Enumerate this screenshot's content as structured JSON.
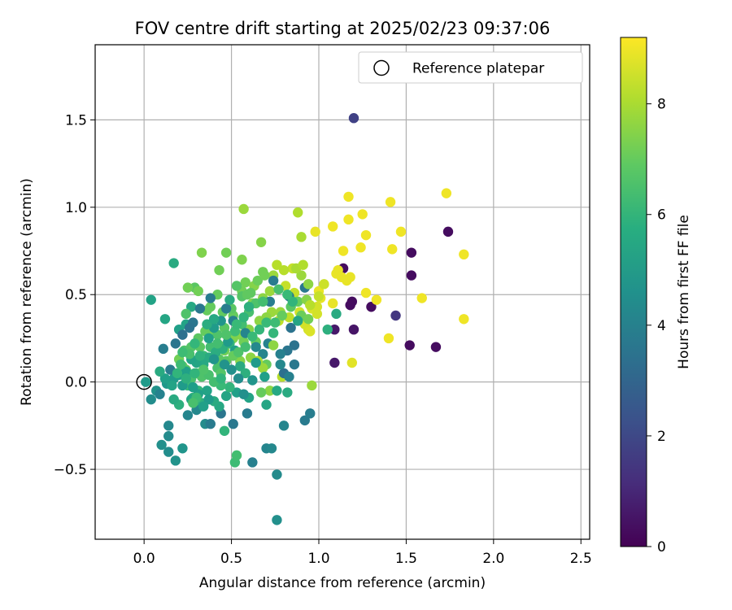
{
  "chart_data": {
    "type": "scatter",
    "title": "FOV centre drift starting at 2025/02/23 09:37:06",
    "xlabel": "Angular distance from reference (arcmin)",
    "ylabel": "Rotation from reference (arcmin)",
    "xlim": [
      -0.28,
      2.55
    ],
    "ylim": [
      -0.9,
      1.93
    ],
    "x_ticks": [
      0.0,
      0.5,
      1.0,
      1.5,
      2.0,
      2.5
    ],
    "x_tick_labels": [
      "0.0",
      "0.5",
      "1.0",
      "1.5",
      "2.0",
      "2.5"
    ],
    "y_ticks": [
      -0.5,
      0.0,
      0.5,
      1.0,
      1.5
    ],
    "y_tick_labels": [
      "−0.5",
      "0.0",
      "0.5",
      "1.0",
      "1.5"
    ],
    "grid": true,
    "legend": {
      "placement": "top-right",
      "entries": [
        {
          "label": "Reference platepar",
          "marker": "open-circle"
        }
      ]
    },
    "reference_point": {
      "x": 0.0,
      "y": 0.0
    },
    "colorbar": {
      "label": "Hours from first FF file",
      "range": [
        0,
        9.2
      ],
      "ticks": [
        0,
        2,
        4,
        6,
        8
      ],
      "tick_labels": [
        "0",
        "2",
        "4",
        "6",
        "8"
      ],
      "colormap": "viridis"
    },
    "points": [
      [
        1.2,
        1.51,
        1.8
      ],
      [
        1.74,
        0.86,
        0.3
      ],
      [
        1.53,
        0.74,
        0.3
      ],
      [
        1.53,
        0.61,
        0.3
      ],
      [
        1.14,
        0.65,
        0.3
      ],
      [
        1.19,
        0.46,
        0.3
      ],
      [
        1.18,
        0.44,
        0.3
      ],
      [
        1.3,
        0.43,
        0.3
      ],
      [
        1.44,
        0.38,
        1.5
      ],
      [
        1.2,
        0.3,
        0.5
      ],
      [
        1.09,
        0.3,
        0.6
      ],
      [
        1.52,
        0.21,
        0.3
      ],
      [
        1.67,
        0.2,
        0.3
      ],
      [
        1.09,
        0.11,
        0.6
      ],
      [
        1.73,
        1.08,
        9.0
      ],
      [
        1.41,
        1.03,
        9.0
      ],
      [
        1.17,
        1.06,
        9.0
      ],
      [
        1.25,
        0.96,
        9.0
      ],
      [
        1.17,
        0.93,
        9.0
      ],
      [
        1.08,
        0.89,
        9.0
      ],
      [
        0.98,
        0.86,
        8.9
      ],
      [
        1.47,
        0.86,
        9.0
      ],
      [
        1.27,
        0.84,
        9.0
      ],
      [
        1.42,
        0.76,
        9.0
      ],
      [
        1.24,
        0.77,
        9.0
      ],
      [
        1.14,
        0.75,
        9.0
      ],
      [
        1.83,
        0.73,
        9.0
      ],
      [
        1.11,
        0.64,
        8.9
      ],
      [
        1.1,
        0.62,
        8.9
      ],
      [
        1.13,
        0.6,
        8.9
      ],
      [
        1.16,
        0.58,
        8.9
      ],
      [
        1.18,
        0.6,
        8.9
      ],
      [
        1.27,
        0.51,
        9.0
      ],
      [
        1.33,
        0.47,
        9.0
      ],
      [
        1.59,
        0.48,
        9.0
      ],
      [
        1.4,
        0.25,
        9.0
      ],
      [
        1.83,
        0.36,
        9.0
      ],
      [
        1.19,
        0.11,
        8.8
      ],
      [
        1.08,
        0.45,
        8.9
      ],
      [
        1.0,
        0.52,
        8.9
      ],
      [
        1.01,
        0.48,
        8.9
      ],
      [
        0.96,
        0.42,
        8.7
      ],
      [
        0.99,
        0.43,
        8.6
      ],
      [
        0.94,
        0.3,
        8.6
      ],
      [
        0.92,
        0.33,
        8.6
      ],
      [
        0.89,
        0.4,
        8.6
      ],
      [
        0.83,
        0.37,
        8.3
      ],
      [
        0.77,
        0.35,
        8.3
      ],
      [
        0.86,
        0.51,
        8.4
      ],
      [
        0.81,
        0.55,
        8.4
      ],
      [
        0.85,
        0.65,
        8.4
      ],
      [
        0.8,
        0.64,
        8.2
      ],
      [
        0.76,
        0.67,
        8.2
      ],
      [
        0.88,
        0.97,
        8.1
      ],
      [
        0.9,
        0.83,
        8.0
      ],
      [
        0.57,
        0.99,
        7.8
      ],
      [
        0.67,
        0.8,
        7.5
      ],
      [
        0.56,
        0.7,
        7.4
      ],
      [
        0.33,
        0.74,
        7.4
      ],
      [
        0.47,
        0.74,
        7.2
      ],
      [
        0.43,
        0.64,
        7.2
      ],
      [
        0.68,
        0.63,
        7.2
      ],
      [
        0.74,
        0.61,
        7.8
      ],
      [
        0.72,
        0.52,
        7.8
      ],
      [
        0.68,
        0.48,
        7.6
      ],
      [
        0.62,
        0.45,
        7.4
      ],
      [
        0.73,
        0.4,
        7.8
      ],
      [
        0.78,
        0.4,
        7.8
      ],
      [
        0.7,
        0.37,
        7.6
      ],
      [
        0.66,
        0.35,
        7.6
      ],
      [
        0.6,
        0.3,
        7.5
      ],
      [
        0.55,
        0.27,
        7.5
      ],
      [
        0.51,
        0.25,
        7.4
      ],
      [
        0.57,
        0.23,
        7.2
      ],
      [
        0.64,
        0.23,
        7.0
      ],
      [
        0.61,
        0.14,
        7.6
      ],
      [
        0.7,
        0.1,
        7.0
      ],
      [
        0.79,
        0.03,
        8.2
      ],
      [
        0.96,
        -0.02,
        7.8
      ],
      [
        0.72,
        -0.05,
        7.6
      ],
      [
        0.67,
        -0.06,
        7.0
      ],
      [
        0.55,
        0.12,
        7.5
      ],
      [
        0.46,
        0.18,
        7.2
      ],
      [
        0.43,
        0.21,
        7.0
      ],
      [
        0.43,
        0.13,
        6.8
      ],
      [
        0.42,
        0.08,
        6.5
      ],
      [
        0.39,
        0.29,
        7.2
      ],
      [
        0.35,
        0.29,
        7.0
      ],
      [
        0.31,
        0.25,
        6.8
      ],
      [
        0.27,
        0.2,
        6.7
      ],
      [
        0.23,
        0.18,
        6.6
      ],
      [
        0.2,
        0.13,
        7.2
      ],
      [
        0.22,
        0.09,
        7.0
      ],
      [
        0.24,
        0.07,
        6.8
      ],
      [
        0.3,
        0.05,
        6.7
      ],
      [
        0.33,
        0.03,
        6.6
      ],
      [
        0.27,
        0.02,
        6.5
      ],
      [
        0.25,
        -0.02,
        6.2
      ],
      [
        0.31,
        -0.05,
        6.0
      ],
      [
        0.28,
        -0.09,
        5.9
      ],
      [
        0.33,
        -0.12,
        5.8
      ],
      [
        0.34,
        0.15,
        6.2
      ],
      [
        0.38,
        0.2,
        6.4
      ],
      [
        0.42,
        0.27,
        6.6
      ],
      [
        0.46,
        0.31,
        6.8
      ],
      [
        0.51,
        0.38,
        7.0
      ],
      [
        0.56,
        0.52,
        7.2
      ],
      [
        0.58,
        0.57,
        7.2
      ],
      [
        0.63,
        0.55,
        7.5
      ],
      [
        0.64,
        0.45,
        6.6
      ],
      [
        0.6,
        0.4,
        6.5
      ],
      [
        0.56,
        0.33,
        6.4
      ],
      [
        0.52,
        0.29,
        6.3
      ],
      [
        0.49,
        0.22,
        6.0
      ],
      [
        0.45,
        0.19,
        5.8
      ],
      [
        0.41,
        0.17,
        5.7
      ],
      [
        0.37,
        0.14,
        5.6
      ],
      [
        0.34,
        0.1,
        5.5
      ],
      [
        0.3,
        0.11,
        5.4
      ],
      [
        0.27,
        0.13,
        5.3
      ],
      [
        0.24,
        0.06,
        5.2
      ],
      [
        0.2,
        0.04,
        5.1
      ],
      [
        0.17,
        0.02,
        5.0
      ],
      [
        0.13,
        -0.01,
        4.9
      ],
      [
        0.07,
        -0.05,
        4.7
      ],
      [
        0.04,
        -0.1,
        4.5
      ],
      [
        0.01,
        0.0,
        5.0
      ],
      [
        0.04,
        0.47,
        5.3
      ],
      [
        0.17,
        0.68,
        5.6
      ],
      [
        0.12,
        0.36,
        5.4
      ],
      [
        0.2,
        0.3,
        5.2
      ],
      [
        0.24,
        0.33,
        5.3
      ],
      [
        0.27,
        0.43,
        5.5
      ],
      [
        0.29,
        0.54,
        6.8
      ],
      [
        0.25,
        0.54,
        7.2
      ],
      [
        0.31,
        0.52,
        7.2
      ],
      [
        0.36,
        0.41,
        7.0
      ],
      [
        0.38,
        0.43,
        7.0
      ],
      [
        0.42,
        0.5,
        7.0
      ],
      [
        0.45,
        0.4,
        6.9
      ],
      [
        0.5,
        0.42,
        6.8
      ],
      [
        0.56,
        0.49,
        6.7
      ],
      [
        0.61,
        0.51,
        6.9
      ],
      [
        0.65,
        0.58,
        7.1
      ],
      [
        0.69,
        0.61,
        7.2
      ],
      [
        0.72,
        0.46,
        3.9
      ],
      [
        0.74,
        0.58,
        3.8
      ],
      [
        0.83,
        0.49,
        3.6
      ],
      [
        0.92,
        0.54,
        3.7
      ],
      [
        0.84,
        0.31,
        3.5
      ],
      [
        0.86,
        0.21,
        3.5
      ],
      [
        0.82,
        0.18,
        3.6
      ],
      [
        0.86,
        0.1,
        3.7
      ],
      [
        0.8,
        0.05,
        3.4
      ],
      [
        0.78,
        0.16,
        4.0
      ],
      [
        0.71,
        0.22,
        4.1
      ],
      [
        0.68,
        0.16,
        4.2
      ],
      [
        0.64,
        0.2,
        4.3
      ],
      [
        0.58,
        0.28,
        4.2
      ],
      [
        0.51,
        0.35,
        4.0
      ],
      [
        0.47,
        0.42,
        3.9
      ],
      [
        0.38,
        0.48,
        3.8
      ],
      [
        0.32,
        0.42,
        3.7
      ],
      [
        0.28,
        0.34,
        3.6
      ],
      [
        0.26,
        0.31,
        3.5
      ],
      [
        0.22,
        0.27,
        3.4
      ],
      [
        0.18,
        0.22,
        3.6
      ],
      [
        0.15,
        0.07,
        3.8
      ],
      [
        0.11,
        0.19,
        3.9
      ],
      [
        0.09,
        -0.07,
        4.1
      ],
      [
        0.14,
        -0.25,
        4.3
      ],
      [
        0.14,
        -0.31,
        4.4
      ],
      [
        0.14,
        -0.4,
        4.5
      ],
      [
        0.1,
        -0.36,
        4.6
      ],
      [
        0.18,
        -0.45,
        4.7
      ],
      [
        0.22,
        -0.38,
        4.8
      ],
      [
        0.25,
        -0.19,
        4.2
      ],
      [
        0.3,
        -0.16,
        4.3
      ],
      [
        0.35,
        -0.24,
        4.4
      ],
      [
        0.38,
        -0.24,
        3.8
      ],
      [
        0.44,
        -0.18,
        3.6
      ],
      [
        0.51,
        -0.24,
        3.7
      ],
      [
        0.59,
        -0.18,
        3.8
      ],
      [
        0.62,
        -0.46,
        4.0
      ],
      [
        0.7,
        -0.38,
        4.2
      ],
      [
        0.73,
        -0.38,
        4.3
      ],
      [
        0.76,
        -0.53,
        4.4
      ],
      [
        0.76,
        -0.79,
        4.6
      ],
      [
        0.8,
        -0.25,
        4.2
      ],
      [
        0.92,
        -0.22,
        3.8
      ],
      [
        0.95,
        -0.18,
        3.9
      ],
      [
        0.82,
        -0.06,
        5.6
      ],
      [
        0.76,
        -0.05,
        5.5
      ],
      [
        0.7,
        -0.13,
        5.4
      ],
      [
        0.6,
        -0.09,
        5.3
      ],
      [
        0.53,
        -0.06,
        5.2
      ],
      [
        0.47,
        -0.08,
        5.4
      ],
      [
        0.43,
        -0.14,
        5.5
      ],
      [
        0.4,
        -0.11,
        5.6
      ],
      [
        0.36,
        -0.05,
        5.3
      ],
      [
        0.31,
        -0.07,
        5.2
      ],
      [
        0.28,
        -0.03,
        5.1
      ],
      [
        0.22,
        -0.02,
        5.0
      ],
      [
        0.19,
        0.05,
        6.0
      ],
      [
        0.21,
        0.1,
        6.3
      ],
      [
        0.26,
        0.16,
        6.5
      ],
      [
        0.32,
        0.2,
        6.8
      ],
      [
        0.37,
        0.25,
        5.2
      ],
      [
        0.4,
        0.31,
        5.0
      ],
      [
        0.44,
        0.35,
        4.8
      ],
      [
        0.48,
        0.23,
        5.0
      ],
      [
        0.52,
        0.18,
        5.2
      ],
      [
        0.55,
        0.09,
        5.6
      ],
      [
        0.58,
        0.05,
        5.8
      ],
      [
        0.49,
        -0.03,
        6.0
      ],
      [
        0.44,
        -0.02,
        6.2
      ],
      [
        0.4,
        0.0,
        6.4
      ],
      [
        0.37,
        0.04,
        6.5
      ],
      [
        0.34,
        0.07,
        6.6
      ],
      [
        0.29,
        0.05,
        6.0
      ],
      [
        0.24,
        0.02,
        5.8
      ],
      [
        0.46,
        -0.28,
        6.0
      ],
      [
        0.52,
        -0.46,
        6.3
      ],
      [
        0.53,
        -0.42,
        6.4
      ],
      [
        0.44,
        0.05,
        6.7
      ],
      [
        0.47,
        0.12,
        6.8
      ],
      [
        0.51,
        0.15,
        7.0
      ],
      [
        0.54,
        0.17,
        6.6
      ],
      [
        0.58,
        0.2,
        6.4
      ],
      [
        0.62,
        0.26,
        6.2
      ],
      [
        0.66,
        0.3,
        6.1
      ],
      [
        0.7,
        0.34,
        6.2
      ],
      [
        0.74,
        0.28,
        6.1
      ],
      [
        0.75,
        0.34,
        6.3
      ],
      [
        0.68,
        0.46,
        6.4
      ],
      [
        0.77,
        0.53,
        6.5
      ],
      [
        0.84,
        0.43,
        6.8
      ],
      [
        0.88,
        0.46,
        7.0
      ],
      [
        0.9,
        0.38,
        7.1
      ],
      [
        0.94,
        0.36,
        7.2
      ],
      [
        0.93,
        0.47,
        7.5
      ],
      [
        0.94,
        0.56,
        7.6
      ],
      [
        0.9,
        0.61,
        7.8
      ],
      [
        0.87,
        0.65,
        8.0
      ],
      [
        0.91,
        0.67,
        8.1
      ],
      [
        0.95,
        0.44,
        8.2
      ],
      [
        1.0,
        0.49,
        8.4
      ],
      [
        1.03,
        0.56,
        8.5
      ],
      [
        0.99,
        0.39,
        8.6
      ],
      [
        0.95,
        0.29,
        8.7
      ],
      [
        1.05,
        0.3,
        5.8
      ],
      [
        1.1,
        0.39,
        5.6
      ],
      [
        0.88,
        0.35,
        5.4
      ],
      [
        0.85,
        0.46,
        6.0
      ],
      [
        0.82,
        0.5,
        6.2
      ],
      [
        0.79,
        0.38,
        7.0
      ],
      [
        0.74,
        0.21,
        7.6
      ],
      [
        0.68,
        0.08,
        7.8
      ],
      [
        0.65,
        0.12,
        8.0
      ],
      [
        0.78,
        0.1,
        4.3
      ],
      [
        0.83,
        0.03,
        4.0
      ],
      [
        0.69,
        0.03,
        5.2
      ],
      [
        0.64,
        0.11,
        5.0
      ],
      [
        0.62,
        0.01,
        4.8
      ],
      [
        0.57,
        -0.07,
        4.6
      ],
      [
        0.54,
        0.02,
        4.5
      ],
      [
        0.5,
        0.07,
        4.6
      ],
      [
        0.46,
        0.1,
        4.7
      ],
      [
        0.4,
        0.13,
        4.8
      ],
      [
        0.37,
        -0.1,
        5.0
      ],
      [
        0.34,
        -0.14,
        5.2
      ],
      [
        0.27,
        -0.1,
        5.4
      ],
      [
        0.2,
        -0.13,
        5.8
      ],
      [
        0.17,
        -0.1,
        5.6
      ],
      [
        0.16,
        -0.02,
        5.3
      ],
      [
        0.12,
        0.02,
        5.2
      ],
      [
        0.09,
        0.06,
        5.6
      ],
      [
        0.44,
        0.02,
        6.0
      ],
      [
        0.42,
        0.22,
        6.4
      ],
      [
        0.47,
        0.27,
        6.6
      ],
      [
        0.53,
        0.33,
        6.2
      ],
      [
        0.57,
        0.37,
        6.0
      ],
      [
        0.6,
        0.43,
        5.8
      ],
      [
        0.49,
        0.47,
        5.6
      ],
      [
        0.53,
        0.55,
        6.7
      ],
      [
        0.59,
        0.5,
        6.9
      ],
      [
        0.24,
        0.39,
        6.6
      ],
      [
        0.22,
        0.17,
        6.3
      ],
      [
        0.29,
        0.22,
        6.1
      ],
      [
        0.32,
        0.15,
        5.9
      ],
      [
        0.36,
        0.33,
        5.7
      ],
      [
        0.4,
        0.36,
        5.5
      ],
      [
        0.3,
        -0.09,
        6.3
      ],
      [
        0.28,
        -0.12,
        6.5
      ]
    ]
  }
}
